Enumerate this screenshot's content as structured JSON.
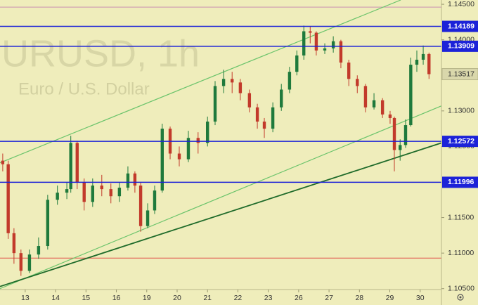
{
  "chart_data": {
    "type": "candlestick",
    "title": "URUSD, 1h",
    "subtitle": "Euro / U.S. Dollar",
    "background": "#efedbb",
    "up_color": "#1f7a3c",
    "down_color": "#c23a2b",
    "xlim": [
      -0.83,
      13.7
    ],
    "ylim": [
      1.1027,
      1.1456
    ],
    "xticks": [
      {
        "value": 0,
        "label": "13"
      },
      {
        "value": 1,
        "label": "14"
      },
      {
        "value": 2,
        "label": "15"
      },
      {
        "value": 3,
        "label": "16"
      },
      {
        "value": 4,
        "label": "19"
      },
      {
        "value": 5,
        "label": "20"
      },
      {
        "value": 6,
        "label": "21"
      },
      {
        "value": 7,
        "label": "22"
      },
      {
        "value": 8,
        "label": "23"
      },
      {
        "value": 9,
        "label": "26"
      },
      {
        "value": 10,
        "label": "27"
      },
      {
        "value": 11,
        "label": "28"
      },
      {
        "value": 12,
        "label": "29"
      },
      {
        "value": 13,
        "label": "30"
      }
    ],
    "yticks": [
      {
        "value": 1.145,
        "label": "1.14500"
      },
      {
        "value": 1.14,
        "label": "1.14000"
      },
      {
        "value": 1.13,
        "label": "1.13000"
      },
      {
        "value": 1.125,
        "label": "1.12500"
      },
      {
        "value": 1.115,
        "label": "1.11500"
      },
      {
        "value": 1.11,
        "label": "1.11000"
      },
      {
        "value": 1.105,
        "label": "1.10500"
      }
    ],
    "x": [
      -0.74,
      -0.56,
      -0.37,
      -0.14,
      0.14,
      0.44,
      0.74,
      1.06,
      1.37,
      1.5,
      1.71,
      1.94,
      2.22,
      2.52,
      2.82,
      3.1,
      3.38,
      3.61,
      3.8,
      4.03,
      4.26,
      4.51,
      4.77,
      5.07,
      5.37,
      5.69,
      6.0,
      6.25,
      6.53,
      6.81,
      7.08,
      7.38,
      7.64,
      7.87,
      8.15,
      8.43,
      8.7,
      8.94,
      9.17,
      9.38,
      9.58,
      9.86,
      10.14,
      10.39,
      10.65,
      10.93,
      11.2,
      11.48,
      11.76,
      12.01,
      12.15,
      12.34,
      12.52,
      12.69,
      12.89,
      13.1,
      13.29
    ],
    "open": [
      1.123,
      1.1225,
      1.1128,
      1.11,
      1.1075,
      1.1098,
      1.111,
      1.1175,
      1.1185,
      1.119,
      1.1255,
      1.12,
      1.1172,
      1.1195,
      1.119,
      1.118,
      1.1192,
      1.1212,
      1.1195,
      1.1138,
      1.116,
      1.1188,
      1.1275,
      1.124,
      1.1232,
      1.1262,
      1.1255,
      1.1285,
      1.1335,
      1.1345,
      1.134,
      1.1325,
      1.1305,
      1.1285,
      1.1275,
      1.1305,
      1.133,
      1.1355,
      1.1378,
      1.1412,
      1.141,
      1.1385,
      1.1388,
      1.1398,
      1.1368,
      1.1345,
      1.1335,
      1.1305,
      1.1315,
      1.1295,
      1.129,
      1.1245,
      1.1252,
      1.128,
      1.1365,
      1.1372,
      1.138
    ],
    "high": [
      1.124,
      1.123,
      1.1135,
      1.1105,
      1.1105,
      1.1122,
      1.1182,
      1.1195,
      1.12,
      1.1265,
      1.1258,
      1.1205,
      1.1205,
      1.121,
      1.1198,
      1.12,
      1.1222,
      1.1215,
      1.12,
      1.117,
      1.1195,
      1.1282,
      1.1278,
      1.125,
      1.1272,
      1.127,
      1.1292,
      1.1342,
      1.1358,
      1.1355,
      1.1345,
      1.133,
      1.131,
      1.129,
      1.1312,
      1.1338,
      1.1362,
      1.1385,
      1.142,
      1.1419,
      1.1412,
      1.1395,
      1.1405,
      1.14,
      1.1372,
      1.135,
      1.1338,
      1.1325,
      1.1318,
      1.13,
      1.1292,
      1.126,
      1.1288,
      1.1375,
      1.1385,
      1.1392,
      1.1382
    ],
    "low": [
      1.1215,
      1.112,
      1.1085,
      1.1068,
      1.1072,
      1.1092,
      1.1105,
      1.1168,
      1.1176,
      1.1185,
      1.119,
      1.116,
      1.1165,
      1.118,
      1.117,
      1.1172,
      1.1188,
      1.1185,
      1.113,
      1.1135,
      1.1155,
      1.1185,
      1.1232,
      1.1222,
      1.1228,
      1.124,
      1.125,
      1.128,
      1.1325,
      1.1325,
      1.1315,
      1.1298,
      1.1275,
      1.1262,
      1.127,
      1.13,
      1.1325,
      1.135,
      1.1372,
      1.1395,
      1.1378,
      1.138,
      1.1382,
      1.136,
      1.1335,
      1.1325,
      1.1298,
      1.1302,
      1.129,
      1.1282,
      1.1215,
      1.123,
      1.1248,
      1.1278,
      1.1355,
      1.1365,
      1.1345
    ],
    "close": [
      1.1225,
      1.1128,
      1.11,
      1.1075,
      1.1098,
      1.111,
      1.1175,
      1.1185,
      1.119,
      1.1255,
      1.12,
      1.1172,
      1.1195,
      1.119,
      1.118,
      1.1192,
      1.1212,
      1.1195,
      1.1138,
      1.116,
      1.1188,
      1.1275,
      1.124,
      1.1232,
      1.1262,
      1.1255,
      1.1285,
      1.1335,
      1.1345,
      1.134,
      1.1325,
      1.1305,
      1.1285,
      1.1275,
      1.1305,
      1.133,
      1.1355,
      1.1378,
      1.1412,
      1.141,
      1.1385,
      1.1388,
      1.1398,
      1.1368,
      1.1345,
      1.1335,
      1.1305,
      1.1315,
      1.1295,
      1.129,
      1.1245,
      1.1252,
      1.128,
      1.1365,
      1.1372,
      1.138,
      1.13517
    ],
    "levels": [
      {
        "value": 1.14189,
        "color": "#1c22d8"
      },
      {
        "value": 1.13909,
        "color": "#1c22d8"
      },
      {
        "value": 1.12572,
        "color": "#1c22d8"
      },
      {
        "value": 1.11996,
        "color": "#1c22d8"
      }
    ],
    "lines": [
      {
        "value": 1.1446,
        "color": "#c98fb0"
      },
      {
        "value": 1.1093,
        "color": "#e0524a"
      }
    ],
    "last_price": 1.13517,
    "trendlines": [
      {
        "color": "#6cc46c",
        "width": 1.2,
        "x": [
          -0.83,
          12.36
        ],
        "y": [
          1.1227,
          1.1456
        ]
      },
      {
        "color": "#6cc46c",
        "width": 1.2,
        "x": [
          -0.83,
          13.7
        ],
        "y": [
          1.105,
          1.1307
        ]
      },
      {
        "color": "#1f6b2a",
        "width": 1.8,
        "x": [
          -0.83,
          13.7
        ],
        "y": [
          1.1053,
          1.1255
        ]
      }
    ]
  }
}
